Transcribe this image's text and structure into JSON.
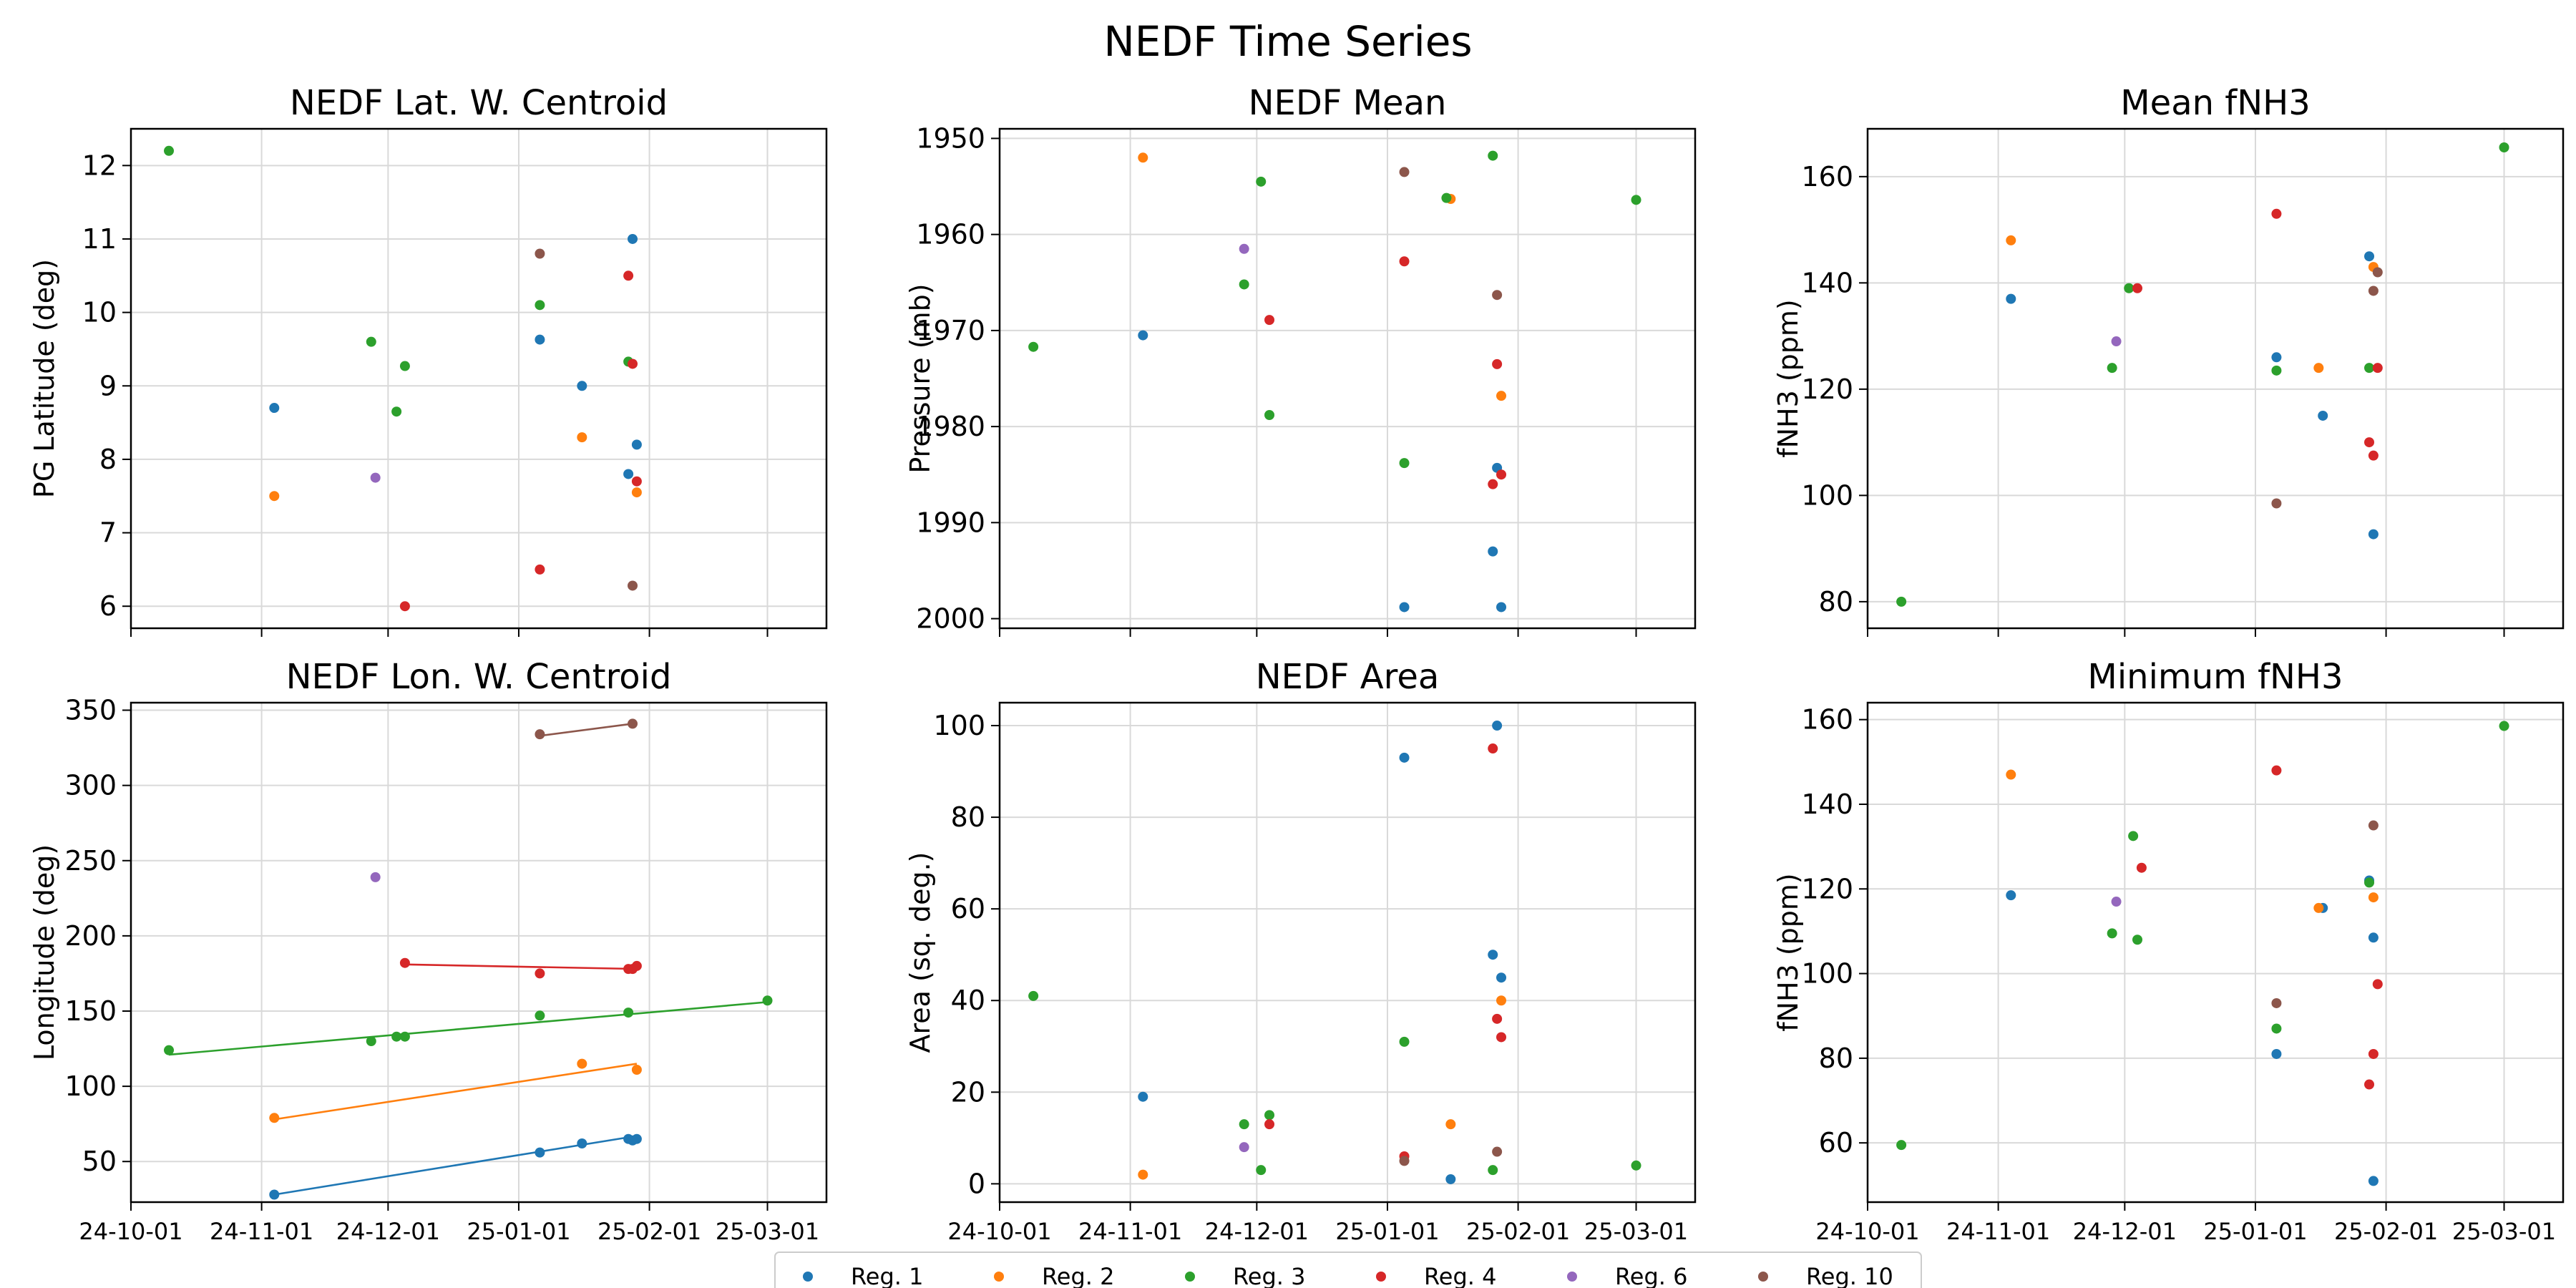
{
  "title": "NEDF Time Series",
  "colors": {
    "Reg. 1": "#1f77b4",
    "Reg. 2": "#ff7f0e",
    "Reg. 3": "#2ca02c",
    "Reg. 4": "#d62728",
    "Reg. 6": "#9467bd",
    "Reg. 10": "#8c564b"
  },
  "legend": {
    "placement": "bottom-center",
    "entries": [
      "Reg. 1",
      "Reg. 2",
      "Reg. 3",
      "Reg. 4",
      "Reg. 6",
      "Reg. 10"
    ]
  },
  "x_axis": {
    "type": "date",
    "range": [
      "2024-10-01",
      "2025-03-15"
    ],
    "ticks": [
      "2024-10-01",
      "2024-11-01",
      "2024-12-01",
      "2025-01-01",
      "2025-02-01",
      "2025-03-01"
    ],
    "tick_labels": [
      "24-10-01",
      "24-11-01",
      "24-12-01",
      "25-01-01",
      "25-02-01",
      "25-03-01"
    ]
  },
  "chart_data": [
    {
      "type": "scatter",
      "title": "NEDF Lat. W. Centroid",
      "xlabel": "",
      "ylabel": "PG Latitude (deg)",
      "ylim": [
        5.7,
        12.5
      ],
      "yticks": [
        6,
        7,
        8,
        9,
        10,
        11,
        12
      ],
      "inverted": false,
      "grid": true,
      "series": [
        {
          "name": "Reg. 1",
          "points": [
            [
              "2024-11-04",
              8.7
            ],
            [
              "2025-01-06",
              9.63
            ],
            [
              "2025-01-16",
              9.0
            ],
            [
              "2025-01-27",
              7.8
            ],
            [
              "2025-01-28",
              11.0
            ],
            [
              "2025-01-29",
              8.2
            ]
          ]
        },
        {
          "name": "Reg. 2",
          "points": [
            [
              "2024-11-04",
              7.5
            ],
            [
              "2025-01-16",
              8.3
            ],
            [
              "2025-01-29",
              7.55
            ]
          ]
        },
        {
          "name": "Reg. 3",
          "points": [
            [
              "2024-10-10",
              12.2
            ],
            [
              "2024-11-27",
              9.6
            ],
            [
              "2024-12-03",
              8.65
            ],
            [
              "2024-12-05",
              9.27
            ],
            [
              "2025-01-06",
              10.1
            ],
            [
              "2025-01-27",
              9.33
            ]
          ]
        },
        {
          "name": "Reg. 4",
          "points": [
            [
              "2024-12-05",
              6.0
            ],
            [
              "2025-01-06",
              6.5
            ],
            [
              "2025-01-27",
              10.5
            ],
            [
              "2025-01-28",
              9.3
            ],
            [
              "2025-01-29",
              7.7
            ]
          ]
        },
        {
          "name": "Reg. 6",
          "points": [
            [
              "2024-11-28",
              7.75
            ]
          ]
        },
        {
          "name": "Reg. 10",
          "points": [
            [
              "2025-01-06",
              10.8
            ],
            [
              "2025-01-28",
              6.28
            ]
          ]
        }
      ]
    },
    {
      "type": "scatter",
      "title": "NEDF Mean",
      "xlabel": "",
      "ylabel": "Pressure (mb)",
      "ylim": [
        2001,
        1949
      ],
      "yticks": [
        1950,
        1960,
        1970,
        1980,
        1990,
        2000
      ],
      "inverted": true,
      "grid": true,
      "series": [
        {
          "name": "Reg. 1",
          "points": [
            [
              "2024-11-04",
              1970.5
            ],
            [
              "2025-01-05",
              1998.8
            ],
            [
              "2025-01-26",
              1993.0
            ],
            [
              "2025-01-27",
              1984.3
            ],
            [
              "2025-01-28",
              1998.8
            ]
          ]
        },
        {
          "name": "Reg. 2",
          "points": [
            [
              "2024-11-04",
              1952.0
            ],
            [
              "2025-01-16",
              1956.3
            ],
            [
              "2025-01-28",
              1976.8
            ]
          ]
        },
        {
          "name": "Reg. 3",
          "points": [
            [
              "2024-10-09",
              1971.7
            ],
            [
              "2024-11-28",
              1965.2
            ],
            [
              "2024-12-02",
              1954.5
            ],
            [
              "2024-12-04",
              1978.8
            ],
            [
              "2025-01-05",
              1983.8
            ],
            [
              "2025-01-15",
              1956.2
            ],
            [
              "2025-01-26",
              1951.8
            ],
            [
              "2025-03-01",
              1956.4
            ]
          ]
        },
        {
          "name": "Reg. 4",
          "points": [
            [
              "2024-12-04",
              1968.9
            ],
            [
              "2025-01-05",
              1962.8
            ],
            [
              "2025-01-26",
              1986.0
            ],
            [
              "2025-01-27",
              1973.5
            ],
            [
              "2025-01-28",
              1985.0
            ]
          ]
        },
        {
          "name": "Reg. 6",
          "points": [
            [
              "2024-11-28",
              1961.5
            ]
          ]
        },
        {
          "name": "Reg. 10",
          "points": [
            [
              "2025-01-05",
              1953.5
            ],
            [
              "2025-01-27",
              1966.3
            ]
          ]
        }
      ]
    },
    {
      "type": "scatter",
      "title": "Mean fNH3",
      "xlabel": "",
      "ylabel": "fNH3 (ppm)",
      "ylim": [
        75,
        169
      ],
      "yticks": [
        80,
        100,
        120,
        140,
        160
      ],
      "inverted": false,
      "grid": true,
      "series": [
        {
          "name": "Reg. 1",
          "points": [
            [
              "2024-11-04",
              137.0
            ],
            [
              "2025-01-06",
              126.0
            ],
            [
              "2025-01-17",
              115.0
            ],
            [
              "2025-01-28",
              145.0
            ],
            [
              "2025-01-29",
              92.7
            ]
          ]
        },
        {
          "name": "Reg. 2",
          "points": [
            [
              "2024-11-04",
              148.0
            ],
            [
              "2025-01-16",
              124.0
            ],
            [
              "2025-01-29",
              143.0
            ]
          ]
        },
        {
          "name": "Reg. 3",
          "points": [
            [
              "2024-10-09",
              80.0
            ],
            [
              "2024-11-28",
              124.0
            ],
            [
              "2024-12-02",
              139.0
            ],
            [
              "2025-01-06",
              123.5
            ],
            [
              "2025-01-28",
              124.0
            ],
            [
              "2025-03-01",
              165.5
            ]
          ]
        },
        {
          "name": "Reg. 4",
          "points": [
            [
              "2024-12-04",
              139.0
            ],
            [
              "2025-01-06",
              153.0
            ],
            [
              "2025-01-28",
              110.0
            ],
            [
              "2025-01-29",
              107.5
            ],
            [
              "2025-01-30",
              124.0
            ]
          ]
        },
        {
          "name": "Reg. 6",
          "points": [
            [
              "2024-11-29",
              129.0
            ]
          ]
        },
        {
          "name": "Reg. 10",
          "points": [
            [
              "2025-01-06",
              98.5
            ],
            [
              "2025-01-29",
              138.5
            ],
            [
              "2025-01-30",
              142.0
            ]
          ]
        }
      ]
    },
    {
      "type": "scatter",
      "title": "NEDF Lon. W. Centroid",
      "xlabel": "",
      "ylabel": "Longitude (deg)",
      "ylim": [
        23,
        355
      ],
      "yticks": [
        50,
        100,
        150,
        200,
        250,
        300,
        350
      ],
      "inverted": false,
      "grid": true,
      "series": [
        {
          "name": "Reg. 1",
          "points": [
            [
              "2024-11-04",
              28.0
            ],
            [
              "2025-01-06",
              56.0
            ],
            [
              "2025-01-16",
              62.0
            ],
            [
              "2025-01-27",
              65.0
            ],
            [
              "2025-01-28",
              64.0
            ],
            [
              "2025-01-29",
              65.0
            ]
          ],
          "fit": [
            [
              "2024-11-04",
              28.0
            ],
            [
              "2025-01-29",
              67.0
            ]
          ]
        },
        {
          "name": "Reg. 2",
          "points": [
            [
              "2024-11-04",
              79.0
            ],
            [
              "2025-01-16",
              115.0
            ],
            [
              "2025-01-29",
              111.0
            ]
          ],
          "fit": [
            [
              "2024-11-04",
              78.0
            ],
            [
              "2025-01-29",
              115.0
            ]
          ]
        },
        {
          "name": "Reg. 3",
          "points": [
            [
              "2024-10-10",
              124.0
            ],
            [
              "2024-11-27",
              130.0
            ],
            [
              "2024-12-03",
              133.0
            ],
            [
              "2024-12-05",
              133.0
            ],
            [
              "2025-01-06",
              147.0
            ],
            [
              "2025-01-27",
              149.0
            ],
            [
              "2025-03-01",
              157.0
            ]
          ],
          "fit": [
            [
              "2024-10-10",
              121.0
            ],
            [
              "2025-03-01",
              156.0
            ]
          ]
        },
        {
          "name": "Reg. 4",
          "points": [
            [
              "2024-12-05",
              182.0
            ],
            [
              "2025-01-06",
              175.0
            ],
            [
              "2025-01-27",
              178.0
            ],
            [
              "2025-01-28",
              178.0
            ],
            [
              "2025-01-29",
              180.0
            ]
          ],
          "fit": [
            [
              "2024-12-05",
              181.0
            ],
            [
              "2025-01-29",
              178.0
            ]
          ]
        },
        {
          "name": "Reg. 6",
          "points": [
            [
              "2024-11-28",
              239.0
            ]
          ]
        },
        {
          "name": "Reg. 10",
          "points": [
            [
              "2025-01-06",
              334.0
            ],
            [
              "2025-01-28",
              341.0
            ]
          ],
          "fit": [
            [
              "2025-01-06",
              333.0
            ],
            [
              "2025-01-28",
              341.0
            ]
          ]
        }
      ]
    },
    {
      "type": "scatter",
      "title": "NEDF Area",
      "xlabel": "",
      "ylabel": "Area (sq. deg.)",
      "ylim": [
        -4,
        105
      ],
      "yticks": [
        0,
        20,
        40,
        60,
        80,
        100
      ],
      "inverted": false,
      "grid": true,
      "series": [
        {
          "name": "Reg. 1",
          "points": [
            [
              "2024-11-04",
              19.0
            ],
            [
              "2025-01-05",
              93.0
            ],
            [
              "2025-01-16",
              1.0
            ],
            [
              "2025-01-26",
              50.0
            ],
            [
              "2025-01-27",
              100.0
            ],
            [
              "2025-01-28",
              45.0
            ]
          ]
        },
        {
          "name": "Reg. 2",
          "points": [
            [
              "2024-11-04",
              2.0
            ],
            [
              "2025-01-16",
              13.0
            ],
            [
              "2025-01-28",
              40.0
            ]
          ]
        },
        {
          "name": "Reg. 3",
          "points": [
            [
              "2024-10-09",
              41.0
            ],
            [
              "2024-11-28",
              13.0
            ],
            [
              "2024-12-02",
              3.0
            ],
            [
              "2024-12-04",
              15.0
            ],
            [
              "2025-01-05",
              31.0
            ],
            [
              "2025-01-26",
              3.0
            ],
            [
              "2025-03-01",
              4.0
            ]
          ]
        },
        {
          "name": "Reg. 4",
          "points": [
            [
              "2024-12-04",
              13.0
            ],
            [
              "2025-01-05",
              6.0
            ],
            [
              "2025-01-26",
              95.0
            ],
            [
              "2025-01-27",
              36.0
            ],
            [
              "2025-01-28",
              32.0
            ]
          ]
        },
        {
          "name": "Reg. 6",
          "points": [
            [
              "2024-11-28",
              8.0
            ]
          ]
        },
        {
          "name": "Reg. 10",
          "points": [
            [
              "2025-01-05",
              5.0
            ],
            [
              "2025-01-27",
              7.0
            ]
          ]
        }
      ]
    },
    {
      "type": "scatter",
      "title": "Minimum fNH3",
      "xlabel": "",
      "ylabel": "fNH3 (ppm)",
      "ylim": [
        46,
        164
      ],
      "yticks": [
        60,
        80,
        100,
        120,
        140,
        160
      ],
      "inverted": false,
      "grid": true,
      "series": [
        {
          "name": "Reg. 1",
          "points": [
            [
              "2024-11-04",
              118.5
            ],
            [
              "2025-01-06",
              81.0
            ],
            [
              "2025-01-17",
              115.5
            ],
            [
              "2025-01-28",
              122.0
            ],
            [
              "2025-01-29",
              108.5
            ],
            [
              "2025-01-29",
              51.0
            ]
          ]
        },
        {
          "name": "Reg. 2",
          "points": [
            [
              "2024-11-04",
              147.0
            ],
            [
              "2025-01-16",
              115.5
            ],
            [
              "2025-01-29",
              118.0
            ]
          ]
        },
        {
          "name": "Reg. 3",
          "points": [
            [
              "2024-10-09",
              59.5
            ],
            [
              "2024-11-28",
              109.5
            ],
            [
              "2024-12-03",
              132.5
            ],
            [
              "2024-12-04",
              108.0
            ],
            [
              "2025-01-06",
              87.0
            ],
            [
              "2025-01-28",
              121.5
            ],
            [
              "2025-03-01",
              158.5
            ]
          ]
        },
        {
          "name": "Reg. 4",
          "points": [
            [
              "2024-12-05",
              125.0
            ],
            [
              "2025-01-06",
              148.0
            ],
            [
              "2025-01-28",
              73.8
            ],
            [
              "2025-01-29",
              81.0
            ],
            [
              "2025-01-30",
              97.5
            ]
          ]
        },
        {
          "name": "Reg. 6",
          "points": [
            [
              "2024-11-29",
              117.0
            ]
          ]
        },
        {
          "name": "Reg. 10",
          "points": [
            [
              "2025-01-06",
              93.0
            ],
            [
              "2025-01-29",
              135.0
            ]
          ]
        }
      ]
    }
  ]
}
